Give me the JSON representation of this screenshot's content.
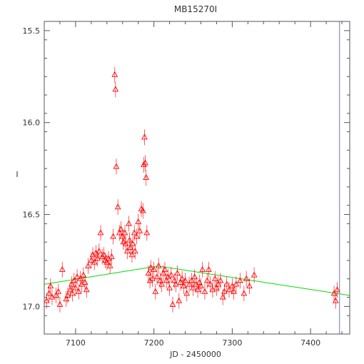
{
  "chart_data": {
    "type": "scatter",
    "title": "MB15270I",
    "xlabel": "JD - 2450000",
    "ylabel": "I",
    "xlim": [
      7060,
      7450
    ],
    "ylim": [
      17.15,
      15.45
    ],
    "x_ticks": [
      7100,
      7200,
      7300,
      7400
    ],
    "y_ticks": [
      15.5,
      16.0,
      16.5,
      17.0
    ],
    "x_tick_labels": [
      "7100",
      "7200",
      "7300",
      "7400"
    ],
    "y_tick_labels": [
      "15.5",
      "16.0",
      "16.5",
      "17.0"
    ],
    "vertical_marker": 7437,
    "grid": false,
    "colors": {
      "points": "#ff0000",
      "model": "#00dd00",
      "marker": "#7777bb",
      "axes": "#555555"
    },
    "series": [
      {
        "marker": "triangle",
        "points": [
          [
            7063,
            16.97
          ],
          [
            7066,
            16.93
          ],
          [
            7068,
            16.89
          ],
          [
            7070,
            16.95
          ],
          [
            7075,
            16.94
          ],
          [
            7078,
            16.92
          ],
          [
            7080,
            16.99
          ],
          [
            7083,
            16.8
          ],
          [
            7088,
            16.96
          ],
          [
            7090,
            16.94
          ],
          [
            7093,
            16.91
          ],
          [
            7095,
            16.88
          ],
          [
            7096,
            16.93
          ],
          [
            7098,
            16.86
          ],
          [
            7100,
            16.9
          ],
          [
            7102,
            16.84
          ],
          [
            7104,
            16.92
          ],
          [
            7106,
            16.85
          ],
          [
            7108,
            16.88
          ],
          [
            7110,
            16.83
          ],
          [
            7112,
            16.87
          ],
          [
            7114,
            16.91
          ],
          [
            7116,
            16.78
          ],
          [
            7120,
            16.75
          ],
          [
            7122,
            16.72
          ],
          [
            7124,
            16.76
          ],
          [
            7126,
            16.71
          ],
          [
            7128,
            16.74
          ],
          [
            7130,
            16.7
          ],
          [
            7132,
            16.6
          ],
          [
            7134,
            16.73
          ],
          [
            7136,
            16.72
          ],
          [
            7138,
            16.75
          ],
          [
            7140,
            16.76
          ],
          [
            7142,
            16.74
          ],
          [
            7144,
            16.78
          ],
          [
            7146,
            16.73
          ],
          [
            7148,
            16.62
          ],
          [
            7150,
            15.74
          ],
          [
            7151,
            15.82
          ],
          [
            7152,
            16.24
          ],
          [
            7154,
            16.46
          ],
          [
            7156,
            16.6
          ],
          [
            7158,
            16.58
          ],
          [
            7160,
            16.62
          ],
          [
            7161,
            16.65
          ],
          [
            7163,
            16.6
          ],
          [
            7164,
            16.66
          ],
          [
            7166,
            16.7
          ],
          [
            7168,
            16.55
          ],
          [
            7169,
            16.64
          ],
          [
            7170,
            16.68
          ],
          [
            7172,
            16.72
          ],
          [
            7173,
            16.66
          ],
          [
            7175,
            16.6
          ],
          [
            7176,
            16.7
          ],
          [
            7178,
            16.62
          ],
          [
            7180,
            16.54
          ],
          [
            7182,
            16.59
          ],
          [
            7184,
            16.47
          ],
          [
            7186,
            16.48
          ],
          [
            7187,
            16.23
          ],
          [
            7188,
            16.08
          ],
          [
            7189,
            16.22
          ],
          [
            7190,
            16.3
          ],
          [
            7191,
            16.6
          ],
          [
            7193,
            16.82
          ],
          [
            7195,
            16.86
          ],
          [
            7196,
            16.79
          ],
          [
            7198,
            16.85
          ],
          [
            7200,
            16.8
          ],
          [
            7202,
            16.92
          ],
          [
            7204,
            16.84
          ],
          [
            7206,
            16.78
          ],
          [
            7208,
            16.86
          ],
          [
            7210,
            16.88
          ],
          [
            7212,
            16.82
          ],
          [
            7214,
            16.8
          ],
          [
            7216,
            16.86
          ],
          [
            7218,
            16.84
          ],
          [
            7220,
            16.9
          ],
          [
            7222,
            16.83
          ],
          [
            7224,
            16.99
          ],
          [
            7226,
            16.86
          ],
          [
            7228,
            16.88
          ],
          [
            7230,
            16.82
          ],
          [
            7232,
            16.97
          ],
          [
            7234,
            16.87
          ],
          [
            7236,
            16.85
          ],
          [
            7238,
            16.89
          ],
          [
            7240,
            16.86
          ],
          [
            7242,
            16.93
          ],
          [
            7245,
            16.88
          ],
          [
            7248,
            16.86
          ],
          [
            7250,
            16.9
          ],
          [
            7252,
            16.84
          ],
          [
            7254,
            16.88
          ],
          [
            7256,
            16.91
          ],
          [
            7258,
            16.87
          ],
          [
            7260,
            16.89
          ],
          [
            7262,
            16.8
          ],
          [
            7265,
            16.92
          ],
          [
            7268,
            16.86
          ],
          [
            7270,
            16.8
          ],
          [
            7272,
            16.88
          ],
          [
            7275,
            16.91
          ],
          [
            7278,
            16.85
          ],
          [
            7280,
            16.9
          ],
          [
            7282,
            16.88
          ],
          [
            7285,
            16.86
          ],
          [
            7288,
            16.95
          ],
          [
            7290,
            16.92
          ],
          [
            7293,
            16.88
          ],
          [
            7296,
            16.91
          ],
          [
            7300,
            16.89
          ],
          [
            7302,
            16.92
          ],
          [
            7305,
            16.88
          ],
          [
            7310,
            16.86
          ],
          [
            7315,
            16.93
          ],
          [
            7318,
            16.85
          ],
          [
            7322,
            16.89
          ],
          [
            7328,
            16.83
          ],
          [
            7430,
            16.93
          ],
          [
            7432,
            16.97
          ],
          [
            7434,
            16.91
          ]
        ]
      },
      {
        "type": "line",
        "color": "#00dd00",
        "x": [
          7060,
          7205,
          7450
        ],
        "values": [
          16.88,
          16.78,
          16.94
        ]
      }
    ]
  }
}
